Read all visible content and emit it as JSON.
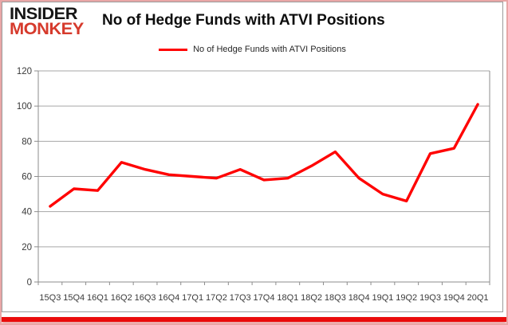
{
  "header": {
    "logo_line1": "INSIDER",
    "logo_line2": "MONKEY",
    "title": "No of Hedge Funds with ATVI Positions"
  },
  "legend": {
    "label": "No of Hedge Funds with ATVI Positions"
  },
  "chart_data": {
    "type": "line",
    "title": "No of Hedge Funds with ATVI Positions",
    "categories": [
      "15Q3",
      "15Q4",
      "16Q1",
      "16Q2",
      "16Q3",
      "16Q4",
      "17Q1",
      "17Q2",
      "17Q3",
      "17Q4",
      "18Q1",
      "18Q2",
      "18Q3",
      "18Q4",
      "19Q1",
      "19Q2",
      "19Q3",
      "19Q4",
      "20Q1"
    ],
    "series": [
      {
        "name": "No of Hedge Funds with ATVI Positions",
        "values": [
          43,
          53,
          52,
          68,
          64,
          61,
          60,
          59,
          64,
          58,
          59,
          66,
          74,
          59,
          50,
          46,
          73,
          76,
          101
        ],
        "color": "#ff0202"
      }
    ],
    "xlabel": "",
    "ylabel": "",
    "ylim": [
      0,
      120
    ],
    "yticks": [
      0,
      20,
      40,
      60,
      80,
      100,
      120
    ],
    "grid": "horizontal",
    "legend_position": "top-center"
  },
  "colors": {
    "series_line": "#ff0202",
    "logo_black": "#161616",
    "logo_red": "#d63a2c",
    "outer_border_pink": "#e9a6a6",
    "bottom_bar_red": "#ea0b0b",
    "gridline": "#a6a6a6",
    "axis_line": "#8c8c8c",
    "axis_text": "#3a3a3a",
    "title_text": "#0e0e0e"
  }
}
